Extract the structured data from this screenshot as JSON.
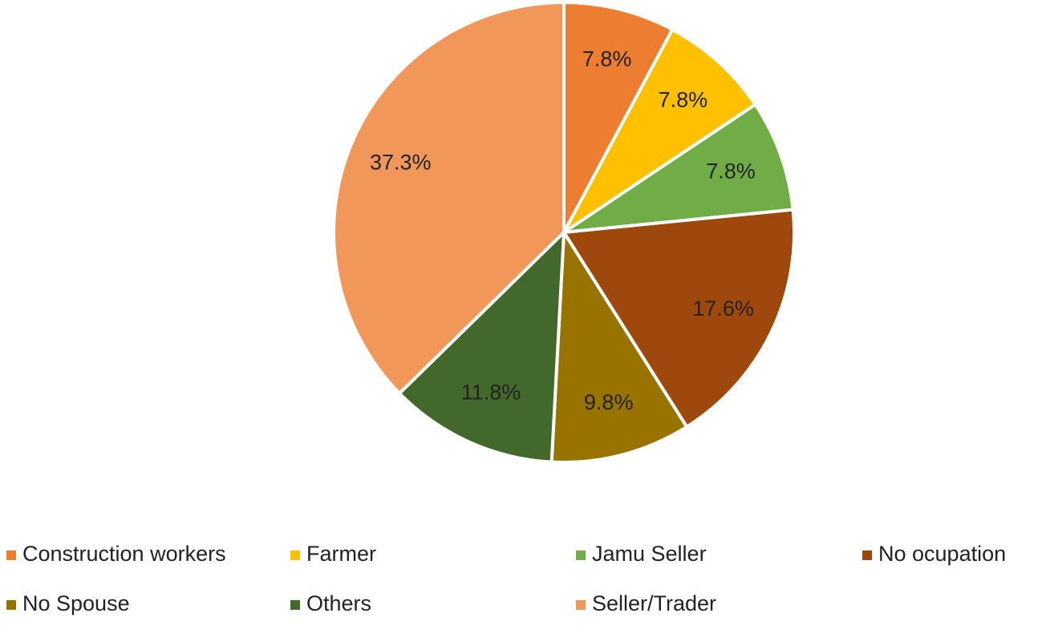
{
  "chart_data": {
    "type": "pie",
    "categories": [
      "Construction workers",
      "Farmer",
      "Jamu Seller",
      "No ocupation",
      "No Spouse",
      "Others",
      "Seller/Trader"
    ],
    "values": [
      7.8,
      7.8,
      7.8,
      17.6,
      9.8,
      11.8,
      37.3
    ],
    "value_labels": [
      "7.8%",
      "7.8%",
      "7.8%",
      "17.6%",
      "9.8%",
      "11.8%",
      "37.3%"
    ],
    "colors": [
      "#ED7D31",
      "#FFC000",
      "#70AD47",
      "#9E480E",
      "#997300",
      "#43682B",
      "#F1975A"
    ],
    "legend": "bottom"
  }
}
